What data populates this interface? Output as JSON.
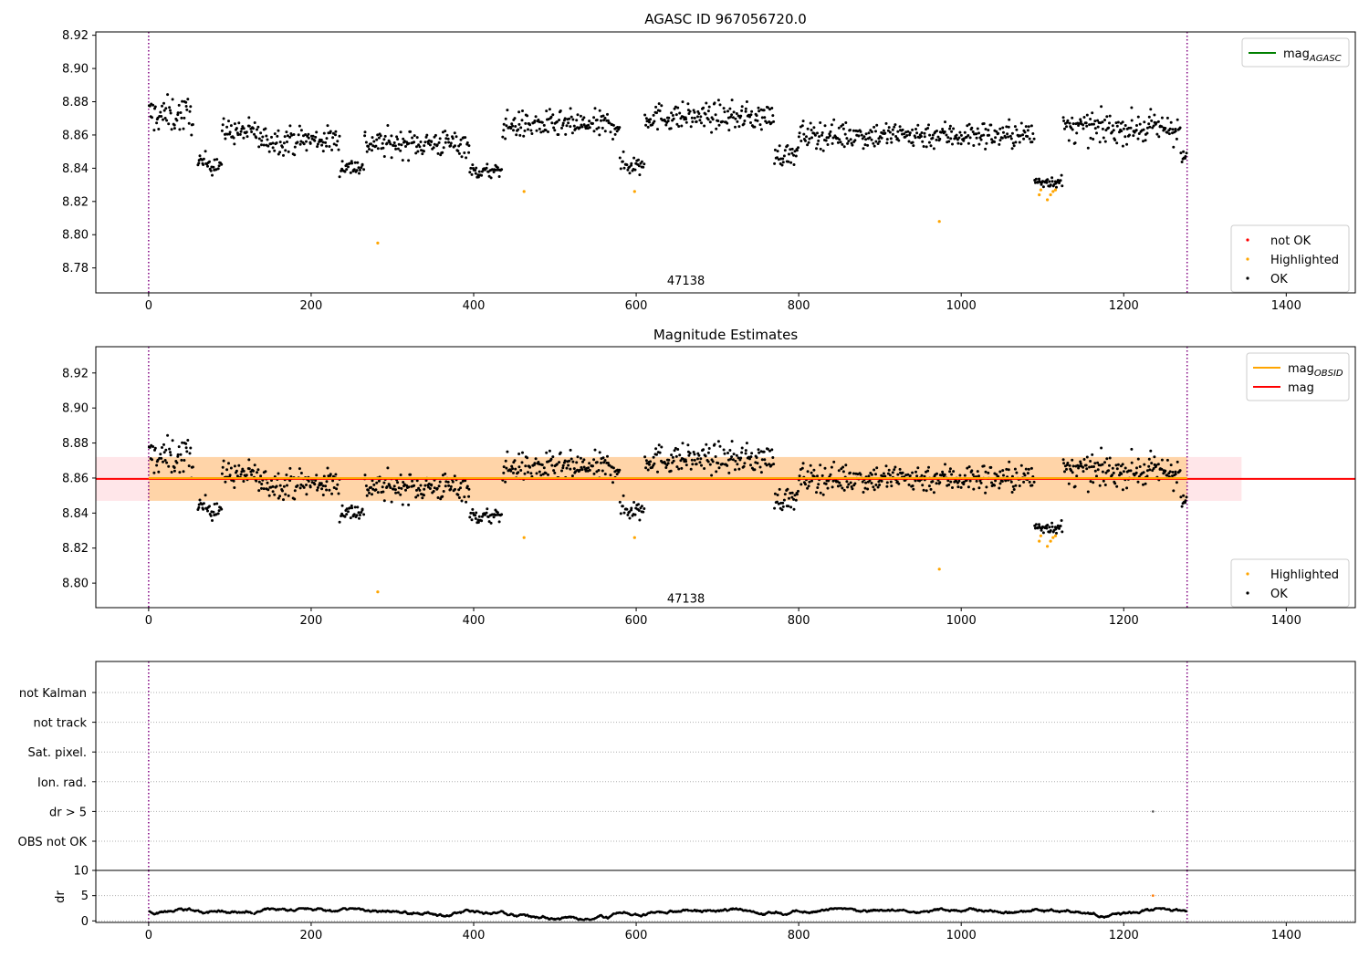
{
  "chart_data": [
    {
      "type": "scatter",
      "title": "AGASC ID 967056720.0",
      "xlim": [
        -65,
        1485
      ],
      "ylim": [
        8.765,
        8.922
      ],
      "xticks": [
        0,
        200,
        400,
        600,
        800,
        1000,
        1200,
        1400
      ],
      "yticks": [
        8.78,
        8.8,
        8.82,
        8.84,
        8.86,
        8.88,
        8.9,
        8.92
      ],
      "obsid_label": {
        "text": "47138",
        "x": 638,
        "y": 8.772
      },
      "vlines": [
        0,
        1278
      ],
      "legend_top": [
        {
          "label_main": "mag",
          "label_sub": "AGASC",
          "color": "#008000",
          "kind": "line"
        }
      ],
      "legend_bottom": [
        {
          "label": "not OK",
          "color": "#ff0000",
          "kind": "point"
        },
        {
          "label": "Highlighted",
          "color": "#ffa500",
          "kind": "point"
        },
        {
          "label": "OK",
          "color": "#000000",
          "kind": "point"
        }
      ],
      "highlighted_points": [
        [
          282,
          8.795
        ],
        [
          462,
          8.826
        ],
        [
          598,
          8.826
        ],
        [
          973,
          8.808
        ],
        [
          1096,
          8.824
        ],
        [
          1098,
          8.827
        ],
        [
          1106,
          8.821
        ],
        [
          1110,
          8.824
        ],
        [
          1113,
          8.826
        ],
        [
          1116,
          8.827
        ]
      ],
      "ok_series": {
        "n": 1278,
        "baseline": 8.861,
        "segments": [
          {
            "x": [
              0,
              55
            ],
            "level": 8.872,
            "spread": 0.012
          },
          {
            "x": [
              60,
              90
            ],
            "level": 8.843,
            "spread": 0.007
          },
          {
            "x": [
              90,
              135
            ],
            "level": 8.862,
            "spread": 0.008
          },
          {
            "x": [
              135,
              235
            ],
            "level": 8.857,
            "spread": 0.009
          },
          {
            "x": [
              235,
              265
            ],
            "level": 8.841,
            "spread": 0.006
          },
          {
            "x": [
              265,
              395
            ],
            "level": 8.855,
            "spread": 0.009
          },
          {
            "x": [
              395,
              435
            ],
            "level": 8.838,
            "spread": 0.005
          },
          {
            "x": [
              435,
              580
            ],
            "level": 8.866,
            "spread": 0.009
          },
          {
            "x": [
              580,
              610
            ],
            "level": 8.842,
            "spread": 0.007
          },
          {
            "x": [
              610,
              770
            ],
            "level": 8.871,
            "spread": 0.009
          },
          {
            "x": [
              770,
              800
            ],
            "level": 8.848,
            "spread": 0.007
          },
          {
            "x": [
              800,
              1090
            ],
            "level": 8.86,
            "spread": 0.009
          },
          {
            "x": [
              1090,
              1125
            ],
            "level": 8.832,
            "spread": 0.004
          },
          {
            "x": [
              1125,
              1270
            ],
            "level": 8.864,
            "spread": 0.01
          },
          {
            "x": [
              1270,
              1278
            ],
            "level": 8.846,
            "spread": 0.005
          }
        ]
      }
    },
    {
      "type": "scatter",
      "title": "Magnitude Estimates",
      "xlim": [
        -65,
        1485
      ],
      "ylim": [
        8.786,
        8.935
      ],
      "xticks": [
        0,
        200,
        400,
        600,
        800,
        1000,
        1200,
        1400
      ],
      "yticks": [
        8.8,
        8.82,
        8.84,
        8.86,
        8.88,
        8.9,
        8.92
      ],
      "obsid_label": {
        "text": "47138",
        "x": 638,
        "y": 8.791
      },
      "vlines": [
        0,
        1278
      ],
      "mag_line": {
        "y": 8.8595,
        "x": [
          -65,
          1485
        ],
        "color": "#ff0000"
      },
      "mag_obsid_line": {
        "y": 8.86,
        "x": [
          0,
          1278
        ],
        "color": "#ffa500"
      },
      "bands": [
        {
          "x": [
            -65,
            1345
          ],
          "y": [
            8.847,
            8.872
          ],
          "color": "#ffb6c1",
          "opacity": 0.35
        },
        {
          "x": [
            0,
            1278
          ],
          "y": [
            8.847,
            8.872
          ],
          "color": "#ffa500",
          "opacity": 0.28
        }
      ],
      "legend_top": [
        {
          "label_main": "mag",
          "label_sub": "OBSID",
          "color": "#ffa500",
          "kind": "line"
        },
        {
          "label_main": "mag",
          "label_sub": "",
          "color": "#ff0000",
          "kind": "line"
        }
      ],
      "legend_bottom": [
        {
          "label": "Highlighted",
          "color": "#ffa500",
          "kind": "point"
        },
        {
          "label": "OK",
          "color": "#000000",
          "kind": "point"
        }
      ]
    },
    {
      "type": "scatter",
      "title": "",
      "xlim": [
        -65,
        1485
      ],
      "flag_rows": [
        "not Kalman",
        "not track",
        "Sat. pixel.",
        "Ion. rad.",
        "dr > 5",
        "OBS not OK"
      ],
      "flag_points": [
        {
          "row": "dr > 5",
          "x": 1236
        }
      ],
      "vlines": [
        0,
        1278
      ]
    },
    {
      "type": "scatter",
      "title": "",
      "ylabel": "dr",
      "xlim": [
        -65,
        1485
      ],
      "ylim": [
        -0.3,
        10
      ],
      "xticks": [
        0,
        200,
        400,
        600,
        800,
        1000,
        1200,
        1400
      ],
      "yticks": [
        0,
        5,
        10
      ],
      "vlines": [
        0,
        1278
      ],
      "dr_series": {
        "n": 1278,
        "min": 0.1,
        "max": 2.5
      },
      "dr_outlier": {
        "x": 1236,
        "y": 5
      }
    }
  ]
}
